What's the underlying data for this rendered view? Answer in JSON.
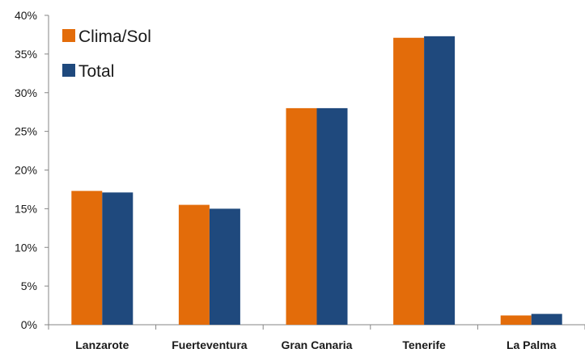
{
  "chart_data": {
    "type": "bar",
    "title": "",
    "xlabel": "",
    "ylabel": "",
    "categories": [
      "Lanzarote",
      "Fuerteventura",
      "Gran Canaria",
      "Tenerife",
      "La Palma"
    ],
    "series": [
      {
        "name": "Clima/Sol",
        "color": "#E36C0A",
        "values": [
          17.3,
          15.5,
          28.0,
          37.1,
          1.2
        ]
      },
      {
        "name": "Total",
        "color": "#1F497D",
        "values": [
          17.1,
          15.0,
          28.0,
          37.3,
          1.4
        ]
      }
    ],
    "ylim": [
      0,
      40
    ],
    "yticks": [
      0,
      5,
      10,
      15,
      20,
      25,
      30,
      35,
      40
    ],
    "ytick_labels": [
      "0%",
      "5%",
      "10%",
      "15%",
      "20%",
      "25%",
      "30%",
      "35%",
      "40%"
    ],
    "grid": false,
    "legend": "top-left"
  }
}
